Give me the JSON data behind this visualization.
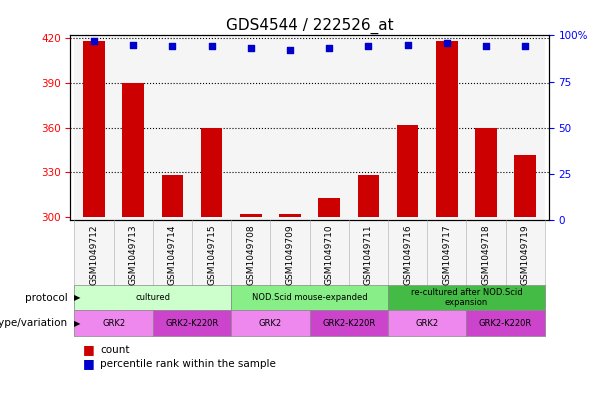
{
  "title": "GDS4544 / 222526_at",
  "samples": [
    "GSM1049712",
    "GSM1049713",
    "GSM1049714",
    "GSM1049715",
    "GSM1049708",
    "GSM1049709",
    "GSM1049710",
    "GSM1049711",
    "GSM1049716",
    "GSM1049717",
    "GSM1049718",
    "GSM1049719"
  ],
  "counts": [
    418,
    390,
    328,
    360,
    302,
    302,
    313,
    328,
    362,
    418,
    360,
    342
  ],
  "percentiles": [
    97,
    95,
    94,
    94,
    93,
    92,
    93,
    94,
    95,
    96,
    94,
    94
  ],
  "ymin": 298,
  "ymax": 422,
  "yticks": [
    300,
    330,
    360,
    390,
    420
  ],
  "y2min": 0,
  "y2max": 100,
  "y2ticks": [
    0,
    25,
    50,
    75,
    100
  ],
  "y2labels": [
    "0",
    "25",
    "50",
    "75",
    "100%"
  ],
  "bar_color": "#cc0000",
  "dot_color": "#0000cc",
  "protocols": [
    {
      "label": "cultured",
      "start": 0,
      "end": 4,
      "color": "#ccffcc"
    },
    {
      "label": "NOD.Scid mouse-expanded",
      "start": 4,
      "end": 8,
      "color": "#88ee88"
    },
    {
      "label": "re-cultured after NOD.Scid\nexpansion",
      "start": 8,
      "end": 12,
      "color": "#44bb44"
    }
  ],
  "genotypes": [
    {
      "label": "GRK2",
      "start": 0,
      "end": 2,
      "color": "#ee88ee"
    },
    {
      "label": "GRK2-K220R",
      "start": 2,
      "end": 4,
      "color": "#cc44cc"
    },
    {
      "label": "GRK2",
      "start": 4,
      "end": 6,
      "color": "#ee88ee"
    },
    {
      "label": "GRK2-K220R",
      "start": 6,
      "end": 8,
      "color": "#cc44cc"
    },
    {
      "label": "GRK2",
      "start": 8,
      "end": 10,
      "color": "#ee88ee"
    },
    {
      "label": "GRK2-K220R",
      "start": 10,
      "end": 12,
      "color": "#cc44cc"
    }
  ],
  "legend_count_color": "#cc0000",
  "legend_pct_color": "#0000cc",
  "title_fontsize": 11,
  "tick_fontsize": 7.5,
  "label_fontsize": 6.5,
  "row_label_fontsize": 7.5
}
